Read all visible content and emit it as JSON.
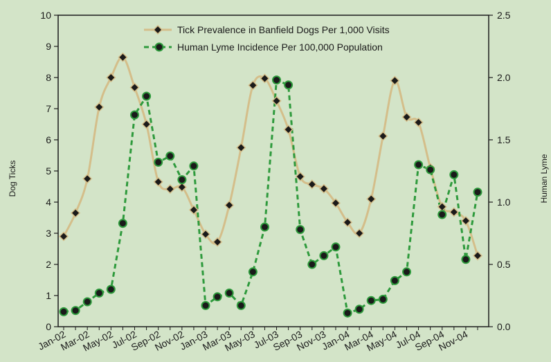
{
  "chart_data": {
    "type": "line",
    "title": "",
    "xlabel": "",
    "ylabel": "Dog Ticks",
    "y2label": "Human Lyme",
    "ylim": [
      0,
      10
    ],
    "y2lim": [
      0,
      2.5
    ],
    "yticks": [
      0,
      1,
      2,
      3,
      4,
      5,
      6,
      7,
      8,
      9,
      10
    ],
    "y2ticks": [
      "0.0",
      "0.5",
      "1.0",
      "1.5",
      "2.0",
      "2.5"
    ],
    "x_tick_labels": [
      "Jan-02",
      "Mar-02",
      "May-02",
      "Jul-02",
      "Sep-02",
      "Nov-02",
      "Jan-03",
      "Mar-03",
      "May-03",
      "Jul-03",
      "Sep-03",
      "Nov-03",
      "Jan-04",
      "Mar-04",
      "May-04",
      "Jul-04",
      "Sep-04",
      "Nov-04"
    ],
    "legend_placement": "top-center",
    "grid": false,
    "series": [
      {
        "name": "Tick Prevalence in Banfield Dogs Per 1,000 Visits",
        "axis": "left",
        "color": "#d4be8a",
        "style": "solid",
        "marker": "diamond",
        "values": [
          2.9,
          3.65,
          4.75,
          7.05,
          8.0,
          8.65,
          7.68,
          6.5,
          4.65,
          4.42,
          4.48,
          3.75,
          2.97,
          2.72,
          3.9,
          5.75,
          7.75,
          7.97,
          7.25,
          6.33,
          4.82,
          4.57,
          4.43,
          3.97,
          3.35,
          3.0,
          4.1,
          6.12,
          7.9,
          6.73,
          6.56,
          5.1,
          3.85,
          3.68,
          3.4,
          2.28
        ]
      },
      {
        "name": "Human Lyme Incidence Per 100,000 Population",
        "axis": "right",
        "color": "#2e9a3c",
        "style": "dashed",
        "marker": "circle",
        "values": [
          0.12,
          0.13,
          0.2,
          0.27,
          0.3,
          0.83,
          1.7,
          1.85,
          1.32,
          1.37,
          1.18,
          1.29,
          0.17,
          0.24,
          0.27,
          0.17,
          0.44,
          0.8,
          1.98,
          1.94,
          0.78,
          0.5,
          0.57,
          0.64,
          0.11,
          0.14,
          0.21,
          0.22,
          0.37,
          0.44,
          1.3,
          1.26,
          0.9,
          1.22,
          0.54,
          1.08
        ]
      }
    ]
  }
}
